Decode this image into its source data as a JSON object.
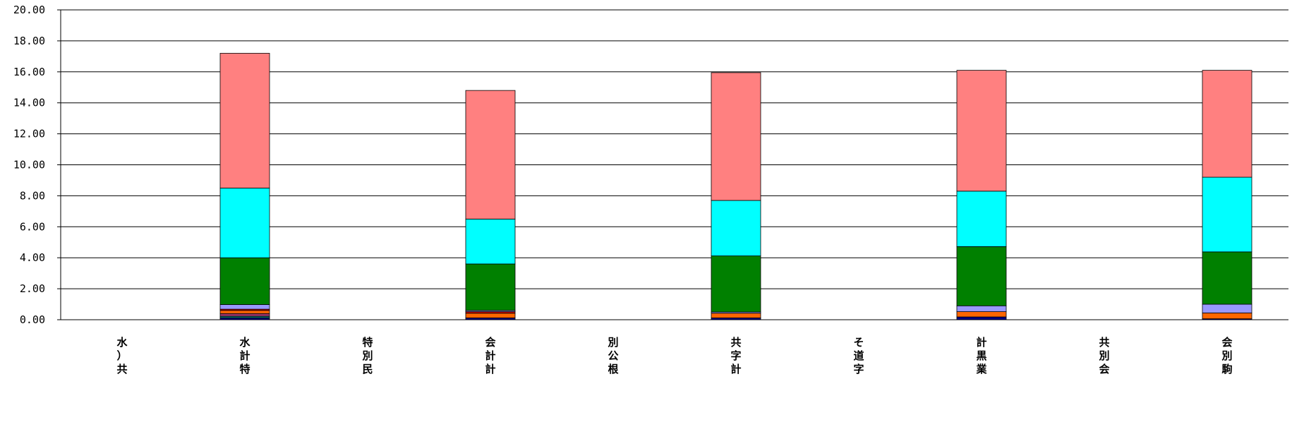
{
  "chart_data": {
    "type": "bar",
    "stacked": true,
    "categories": [
      [
        "水",
        "）",
        "共"
      ],
      [
        "水",
        "計",
        "特"
      ],
      [
        "特",
        "別",
        "民"
      ],
      [
        "会",
        "計",
        "計"
      ],
      [
        "別",
        "公",
        "根"
      ],
      [
        "共",
        "字",
        "計"
      ],
      [
        "そ",
        "道",
        "字"
      ],
      [
        "計",
        "黒",
        "業"
      ],
      [
        "共",
        "別",
        "会"
      ],
      [
        "会",
        "別",
        "駒"
      ]
    ],
    "yticks": [
      "0.00",
      "2.00",
      "4.00",
      "6.00",
      "8.00",
      "10.00",
      "12.00",
      "14.00",
      "16.00",
      "18.00",
      "20.00"
    ],
    "ylim": [
      0,
      20
    ],
    "grid": true,
    "series": [
      {
        "color": "#000080",
        "values": [
          null,
          0.12,
          null,
          0.12,
          null,
          0.12,
          null,
          0.18,
          null,
          0.06
        ]
      },
      {
        "color": "#008080",
        "values": [
          null,
          0.1,
          null,
          0.0,
          null,
          0.0,
          null,
          0.0,
          null,
          0.0
        ]
      },
      {
        "color": "#993366",
        "values": [
          null,
          0.18,
          null,
          0.0,
          null,
          0.0,
          null,
          0.0,
          null,
          0.0
        ]
      },
      {
        "color": "#FF6600",
        "values": [
          null,
          0.2,
          null,
          0.3,
          null,
          0.3,
          null,
          0.34,
          null,
          0.38
        ]
      },
      {
        "color": "#CC0000",
        "values": [
          null,
          0.08,
          null,
          0.1,
          null,
          0.0,
          null,
          0.0,
          null,
          0.0
        ]
      },
      {
        "color": "#9999FF",
        "values": [
          null,
          0.3,
          null,
          0.08,
          null,
          0.08,
          null,
          0.38,
          null,
          0.56
        ]
      },
      {
        "color": "#008000",
        "values": [
          null,
          3.02,
          null,
          3.0,
          null,
          3.62,
          null,
          3.82,
          null,
          3.38
        ]
      },
      {
        "color": "#00FFFF",
        "values": [
          null,
          4.5,
          null,
          2.9,
          null,
          3.58,
          null,
          3.58,
          null,
          4.82
        ]
      },
      {
        "color": "#FF8080",
        "values": [
          null,
          8.7,
          null,
          8.3,
          null,
          8.25,
          null,
          7.8,
          null,
          6.9
        ]
      }
    ]
  }
}
